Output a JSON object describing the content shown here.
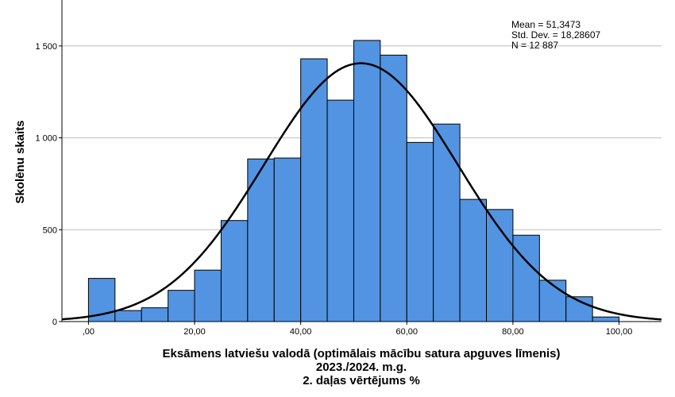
{
  "chart_data": {
    "type": "bar",
    "subtype": "histogram",
    "title": "",
    "xlabel_lines": [
      "Eksāmens latviešu valodā (optimālais mācību satura apguves līmenis)",
      "2023./2024. m.g.",
      "2. daļas vērtējums %"
    ],
    "ylabel": "Skolēnu skaits",
    "xlim": [
      -5,
      108
    ],
    "ylim": [
      0,
      1750
    ],
    "bin_width": 5,
    "bins": [
      {
        "x0": 0,
        "x1": 5,
        "count": 235
      },
      {
        "x0": 5,
        "x1": 10,
        "count": 60
      },
      {
        "x0": 10,
        "x1": 15,
        "count": 75
      },
      {
        "x0": 15,
        "x1": 20,
        "count": 170
      },
      {
        "x0": 20,
        "x1": 25,
        "count": 280
      },
      {
        "x0": 25,
        "x1": 30,
        "count": 550
      },
      {
        "x0": 30,
        "x1": 35,
        "count": 885
      },
      {
        "x0": 35,
        "x1": 40,
        "count": 890
      },
      {
        "x0": 40,
        "x1": 45,
        "count": 1430
      },
      {
        "x0": 45,
        "x1": 50,
        "count": 1205
      },
      {
        "x0": 50,
        "x1": 55,
        "count": 1530
      },
      {
        "x0": 55,
        "x1": 60,
        "count": 1450
      },
      {
        "x0": 60,
        "x1": 65,
        "count": 975
      },
      {
        "x0": 65,
        "x1": 70,
        "count": 1075
      },
      {
        "x0": 70,
        "x1": 75,
        "count": 665
      },
      {
        "x0": 75,
        "x1": 80,
        "count": 610
      },
      {
        "x0": 80,
        "x1": 85,
        "count": 470
      },
      {
        "x0": 85,
        "x1": 90,
        "count": 225
      },
      {
        "x0": 90,
        "x1": 95,
        "count": 135
      },
      {
        "x0": 95,
        "x1": 100,
        "count": 25
      }
    ],
    "x_ticks": [
      {
        "value": 0,
        "label": ",00"
      },
      {
        "value": 20,
        "label": "20,00"
      },
      {
        "value": 40,
        "label": "40,00"
      },
      {
        "value": 60,
        "label": "60,00"
      },
      {
        "value": 80,
        "label": "80,00"
      },
      {
        "value": 100,
        "label": "100,00"
      }
    ],
    "y_ticks": [
      {
        "value": 0,
        "label": "0"
      },
      {
        "value": 500,
        "label": "500"
      },
      {
        "value": 1000,
        "label": "1 000"
      },
      {
        "value": 1500,
        "label": "1 500"
      }
    ],
    "normal_curve": {
      "mean": 51.3473,
      "std_dev": 18.28607,
      "n": 12887,
      "bin_width": 5
    },
    "stats_lines": [
      "Mean = 51,3473",
      "Std. Dev. = 18,28607",
      "N = 12 887"
    ],
    "grid": "horizontal",
    "legend": "none",
    "colors": {
      "bar_fill": "#5294e2",
      "bar_stroke": "#000000",
      "curve": "#000000",
      "grid": "#bdbdbd"
    }
  }
}
